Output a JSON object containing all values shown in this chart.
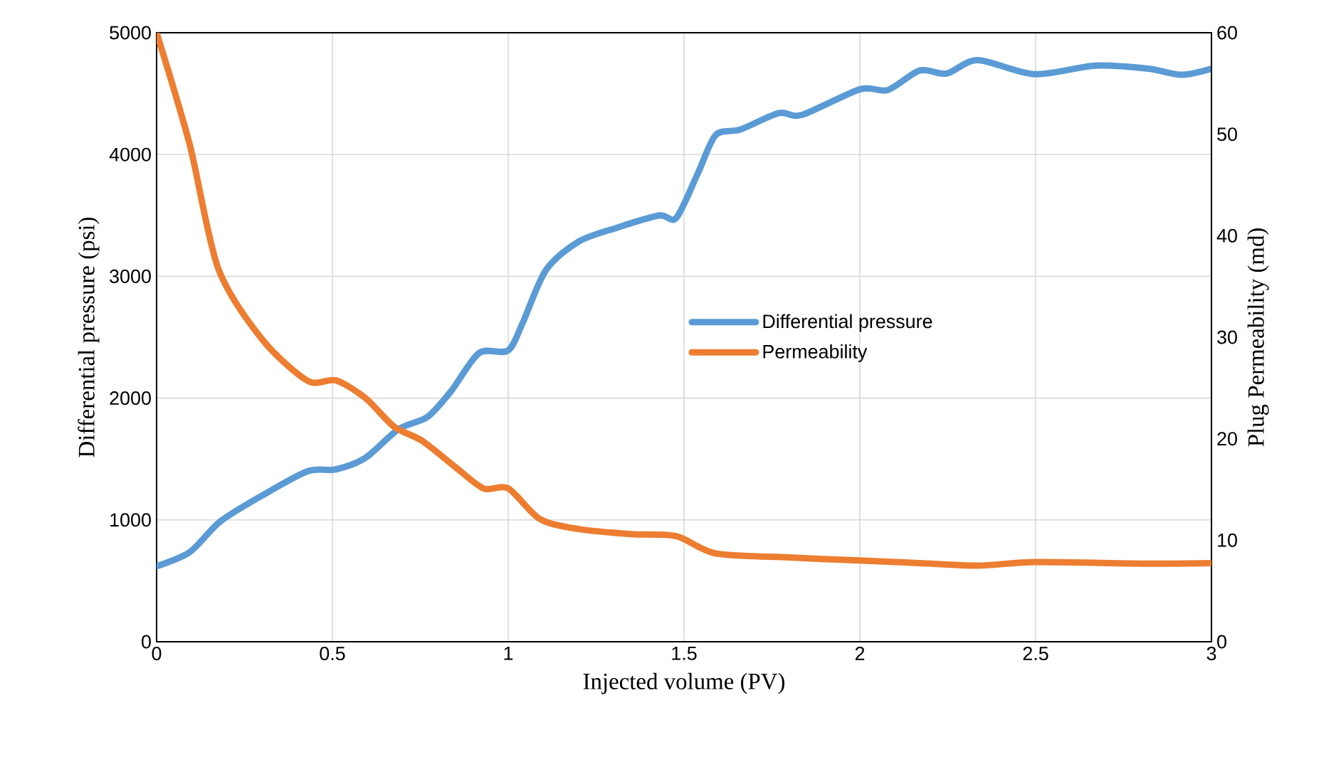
{
  "chart_data": {
    "type": "line",
    "xlabel": "Injected volume (PV)",
    "ylabel": "Differential pressure (psi)",
    "y2label": "Plug Permeability (md)",
    "xlim": [
      0,
      3
    ],
    "xticks": [
      0,
      0.5,
      1,
      1.5,
      2,
      2.5,
      3
    ],
    "ylim": [
      0,
      5000
    ],
    "yticks": [
      0,
      1000,
      2000,
      3000,
      4000,
      5000
    ],
    "y2lim": [
      0,
      60
    ],
    "y2ticks": [
      0,
      10,
      20,
      30,
      40,
      50,
      60
    ],
    "grid": true,
    "legend": "right",
    "series": [
      {
        "name": "Differential pressure",
        "color": "#5b9bd5",
        "x": [
          0,
          0.094,
          0.18,
          0.3,
          0.43,
          0.51,
          0.594,
          0.688,
          0.77,
          0.837,
          0.917,
          0.999,
          1.04,
          1.107,
          1.2,
          1.31,
          1.43,
          1.478,
          1.54,
          1.59,
          1.66,
          1.77,
          1.835,
          2.0,
          2.08,
          2.17,
          2.247,
          2.335,
          2.497,
          2.67,
          2.82,
          2.915,
          3.0
        ],
        "values": [
          620,
          735,
          985,
          1200,
          1400,
          1415,
          1510,
          1745,
          1845,
          2055,
          2370,
          2390,
          2610,
          3050,
          3285,
          3400,
          3500,
          3480,
          3850,
          4160,
          4205,
          4340,
          4325,
          4535,
          4530,
          4690,
          4665,
          4775,
          4660,
          4730,
          4705,
          4655,
          4705
        ]
      },
      {
        "name": "Permeability",
        "color": "#ed7d31",
        "axis": "y2",
        "x": [
          0,
          0.094,
          0.175,
          0.3,
          0.43,
          0.51,
          0.594,
          0.675,
          0.755,
          0.85,
          0.93,
          1.0,
          1.09,
          1.2,
          1.35,
          1.478,
          1.59,
          1.8,
          2.0,
          2.17,
          2.335,
          2.5,
          2.81,
          3.0
        ],
        "values": [
          60,
          49,
          36.8,
          29.8,
          25.7,
          25.75,
          24.0,
          21.2,
          19.8,
          17.2,
          15.1,
          15.1,
          12.1,
          11.1,
          10.6,
          10.4,
          8.7,
          8.3,
          8.0,
          7.75,
          7.5,
          7.85,
          7.7,
          7.75
        ]
      }
    ]
  }
}
